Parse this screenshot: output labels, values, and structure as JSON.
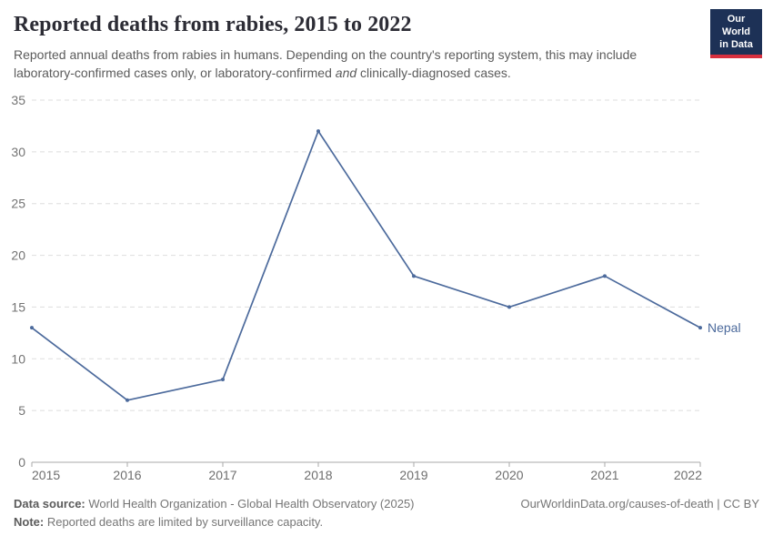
{
  "header": {
    "title": "Reported deaths from rabies, 2015 to 2022",
    "subtitle": {
      "line1": "Reported annual deaths from rabies in humans. Depending on the country's reporting system, this may include",
      "line2_before": "laboratory-confirmed cases only, or laboratory-confirmed ",
      "line2_italic": "and",
      "line2_after": " clinically-diagnosed cases."
    },
    "logo": {
      "line1": "Our World",
      "line2": "in Data",
      "bg_color": "#1d3156",
      "accent_color": "#d8303f"
    }
  },
  "chart_data": {
    "type": "line",
    "title": "Reported deaths from rabies, 2015 to 2022",
    "x": [
      2015,
      2016,
      2017,
      2018,
      2019,
      2020,
      2021,
      2022
    ],
    "series": [
      {
        "name": "Nepal",
        "values": [
          13,
          6,
          8,
          32,
          18,
          15,
          18,
          13
        ],
        "color": "#4c6a9c"
      }
    ],
    "xlabel": "",
    "ylabel": "",
    "ylim": [
      0,
      35
    ],
    "yticks": [
      0,
      5,
      10,
      15,
      20,
      25,
      30,
      35
    ],
    "grid": "horizontal-dashed",
    "grid_color": "#dedede",
    "axis_color": "#a8a8a8",
    "tick_label_color": "#737373",
    "legend_position": "end-of-line-label"
  },
  "footer": {
    "source_label": "Data source:",
    "source_text": " World Health Organization - Global Health Observatory (2025)",
    "note_label": "Note:",
    "note_text": " Reported deaths are limited by surveillance capacity.",
    "right_text": "OurWorldinData.org/causes-of-death | CC BY"
  }
}
